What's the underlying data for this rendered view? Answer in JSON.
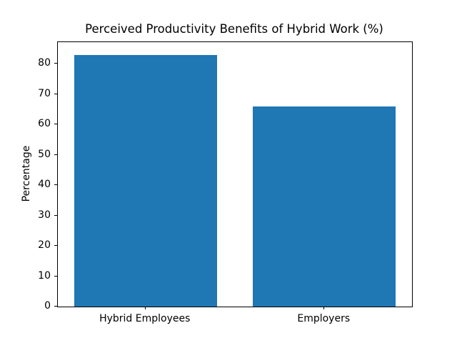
{
  "chart_data": {
    "type": "bar",
    "title": "Perceived Productivity Benefits of Hybrid Work (%)",
    "categories": [
      "Hybrid Employees",
      "Employers"
    ],
    "values": [
      83,
      66
    ],
    "xlabel": "",
    "ylabel": "Percentage",
    "ylim": [
      0,
      87.15
    ],
    "yticks": [
      0,
      10,
      20,
      30,
      40,
      50,
      60,
      70,
      80
    ],
    "bar_color": "#1f77b4",
    "axis_color": "#000000",
    "background_color": "#ffffff",
    "grid": false,
    "legend_position": "none",
    "bar_width_fraction": 0.8
  }
}
